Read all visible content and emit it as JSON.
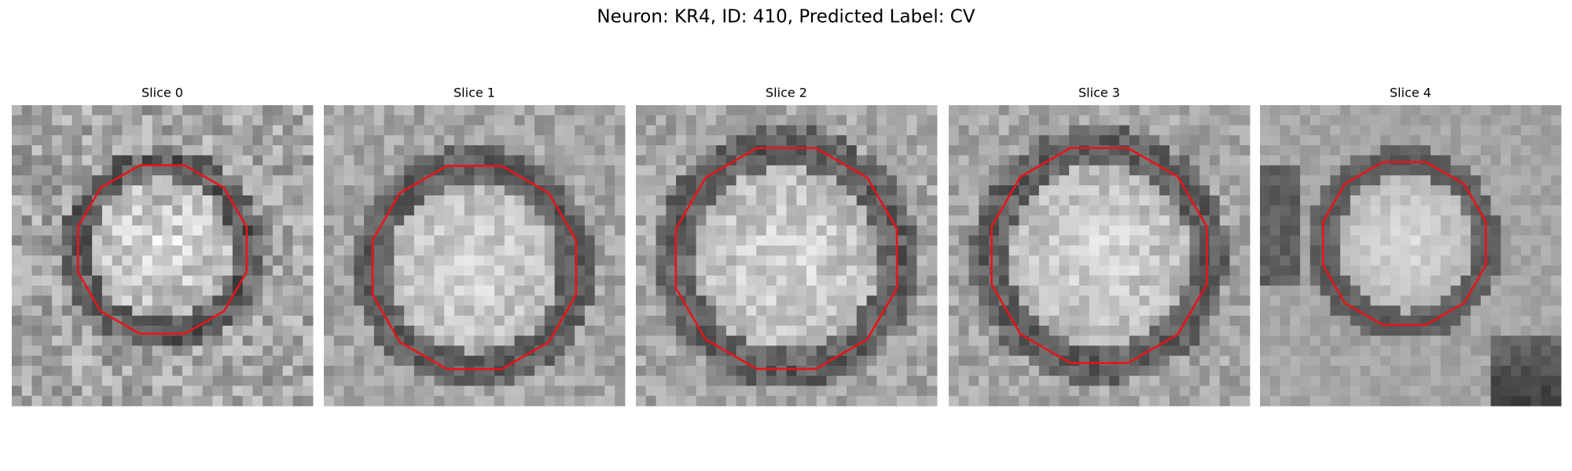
{
  "title": "Neuron: KR4, ID: 410, Predicted Label: CV",
  "panels": [
    {
      "title": "Slice 0"
    },
    {
      "title": "Slice 1"
    },
    {
      "title": "Slice 2"
    },
    {
      "title": "Slice 3"
    },
    {
      "title": "Slice 4"
    }
  ]
}
